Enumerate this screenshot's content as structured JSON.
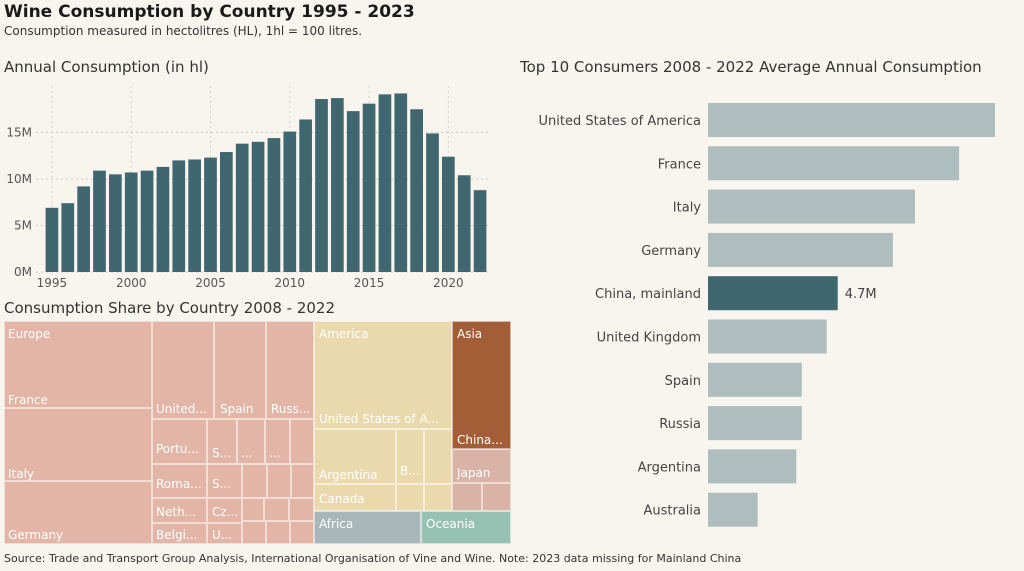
{
  "title": "Wine Consumption by Country 1995 - 2023",
  "subtitle": "Consumption measured in hectolitres (HL), 1hl = 100 litres.",
  "footer": "Source: Trade and Transport Group Analysis, International Organisation of Vine and Wine. Note: 2023 data missing for Mainland China",
  "colors": {
    "bar": "#406670",
    "top10_bar": "#aebdbd",
    "top10_highlight": "#406670",
    "europe": "#e3b5a6",
    "america": "#e9d9ad",
    "asia": "#a35e38",
    "asia_light": "#d9b4a6",
    "africa": "#a8b7b9",
    "oceania": "#97c2b3"
  },
  "chart_data": [
    {
      "type": "bar",
      "title": "Annual Consumption (in hl)",
      "x": [
        1995,
        1996,
        1997,
        1998,
        1999,
        2000,
        2001,
        2002,
        2003,
        2004,
        2005,
        2006,
        2007,
        2008,
        2009,
        2010,
        2011,
        2012,
        2013,
        2014,
        2015,
        2016,
        2017,
        2018,
        2019,
        2020,
        2021,
        2022
      ],
      "values": [
        6.9,
        7.4,
        9.2,
        10.9,
        10.5,
        10.7,
        10.9,
        11.3,
        12.0,
        12.1,
        12.3,
        12.9,
        13.8,
        14.0,
        14.4,
        15.1,
        16.4,
        18.6,
        18.7,
        17.3,
        18.1,
        19.1,
        19.2,
        17.5,
        14.9,
        12.4,
        10.4,
        8.8
      ],
      "value_unit": "M",
      "xticks": [
        1995,
        2000,
        2005,
        2010,
        2015,
        2020
      ],
      "yticks": [
        0,
        5,
        10,
        15
      ],
      "ytick_labels": [
        "0M",
        "5M",
        "10M",
        "15M"
      ],
      "ylim": [
        0,
        20
      ],
      "grid": "dotted"
    },
    {
      "type": "bar",
      "orientation": "horizontal",
      "title": "Top 10 Consumers 2008 - 2022 Average Annual Consumption",
      "categories": [
        "United States of America",
        "France",
        "Italy",
        "Germany",
        "China, mainland",
        "United Kingdom",
        "Spain",
        "Russia",
        "Argentina",
        "Australia"
      ],
      "values": [
        10.4,
        9.1,
        7.5,
        6.7,
        4.7,
        4.3,
        3.4,
        3.4,
        3.2,
        1.8
      ],
      "value_unit": "M",
      "highlight": "China, mainland",
      "highlight_label": "4.7M"
    },
    {
      "type": "treemap",
      "title": "Consumption Share by Country 2008 - 2022",
      "groups": [
        {
          "name": "Europe",
          "children": [
            {
              "name": "France"
            },
            {
              "name": "Italy"
            },
            {
              "name": "Germany"
            },
            {
              "name": "United..."
            },
            {
              "name": "Spain"
            },
            {
              "name": "Russ..."
            },
            {
              "name": "Portu..."
            },
            {
              "name": "S..."
            },
            {
              "name": "..."
            },
            {
              "name": "..."
            },
            {
              "name": "Roma..."
            },
            {
              "name": "S..."
            },
            {
              "name": "Neth..."
            },
            {
              "name": "Cz..."
            },
            {
              "name": "Belgi..."
            },
            {
              "name": "U..."
            }
          ]
        },
        {
          "name": "America",
          "children": [
            {
              "name": "United States of A..."
            },
            {
              "name": "Argentina"
            },
            {
              "name": "B..."
            },
            {
              "name": "Canada"
            }
          ]
        },
        {
          "name": "Asia",
          "children": [
            {
              "name": "China..."
            },
            {
              "name": "Japan"
            }
          ]
        },
        {
          "name": "Africa"
        },
        {
          "name": "Oceania"
        }
      ]
    }
  ]
}
